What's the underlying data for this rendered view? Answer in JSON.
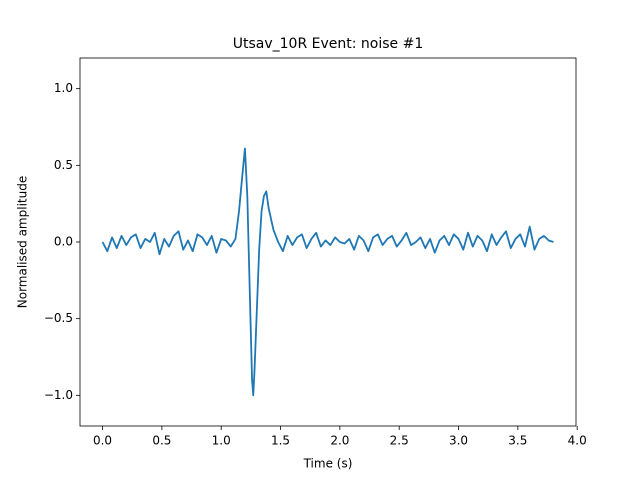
{
  "chart_data": {
    "type": "line",
    "title": "Utsav_10R Event: noise #1",
    "xlabel": "Time (s)",
    "ylabel": "Normalised amplitude",
    "color": "#1f77b4",
    "x": [
      0,
      0.04,
      0.08,
      0.12,
      0.16,
      0.2,
      0.24,
      0.28,
      0.32,
      0.36,
      0.4,
      0.44,
      0.48,
      0.52,
      0.56,
      0.6,
      0.64,
      0.68,
      0.72,
      0.76,
      0.8,
      0.84,
      0.88,
      0.92,
      0.96,
      1,
      1.04,
      1.08,
      1.12,
      1.15,
      1.18,
      1.2,
      1.22,
      1.24,
      1.26,
      1.27,
      1.28,
      1.3,
      1.32,
      1.34,
      1.36,
      1.38,
      1.4,
      1.44,
      1.48,
      1.52,
      1.56,
      1.6,
      1.64,
      1.68,
      1.72,
      1.76,
      1.8,
      1.84,
      1.88,
      1.92,
      1.96,
      2,
      2.04,
      2.08,
      2.12,
      2.16,
      2.2,
      2.24,
      2.28,
      2.32,
      2.36,
      2.4,
      2.44,
      2.48,
      2.52,
      2.56,
      2.6,
      2.64,
      2.68,
      2.72,
      2.76,
      2.8,
      2.84,
      2.88,
      2.92,
      2.96,
      3,
      3.04,
      3.08,
      3.12,
      3.16,
      3.2,
      3.24,
      3.28,
      3.32,
      3.36,
      3.4,
      3.44,
      3.48,
      3.52,
      3.56,
      3.6,
      3.64,
      3.68,
      3.72,
      3.76,
      3.8
    ],
    "values": [
      0,
      -0.06,
      0.03,
      -0.04,
      0.04,
      -0.02,
      0.03,
      0.05,
      -0.04,
      0.02,
      0,
      0.06,
      -0.08,
      0.02,
      -0.03,
      0.04,
      0.07,
      -0.05,
      0.01,
      -0.06,
      0.05,
      0.03,
      -0.02,
      0.04,
      -0.07,
      0.02,
      0.01,
      -0.03,
      0.02,
      0.2,
      0.45,
      0.61,
      0.3,
      -0.3,
      -0.9,
      -1.0,
      -0.85,
      -0.45,
      -0.05,
      0.2,
      0.3,
      0.33,
      0.22,
      0.08,
      0.0,
      -0.06,
      0.04,
      -0.02,
      0.03,
      0.05,
      -0.04,
      0.02,
      0.06,
      -0.03,
      0.01,
      -0.02,
      0.03,
      0,
      -0.01,
      0.02,
      -0.05,
      0.04,
      0.01,
      -0.06,
      0.03,
      0.05,
      -0.02,
      0.02,
      0.04,
      -0.03,
      0.01,
      0.06,
      -0.02,
      0,
      0.03,
      -0.04,
      0.02,
      -0.07,
      0.01,
      0.04,
      -0.02,
      0.05,
      0.02,
      -0.05,
      0.06,
      -0.03,
      0.04,
      0.01,
      -0.06,
      0.05,
      -0.02,
      0.03,
      0.07,
      -0.04,
      0.02,
      0.05,
      -0.03,
      0.1,
      -0.05,
      0.02,
      0.04,
      0.01,
      0.0
    ],
    "xlim": [
      -0.19,
      3.99
    ],
    "ylim": [
      -1.2,
      1.2
    ],
    "xticks": [
      {
        "value": 0,
        "label": "0.0"
      },
      {
        "value": 0.5,
        "label": "0.5"
      },
      {
        "value": 1,
        "label": "1.0"
      },
      {
        "value": 1.5,
        "label": "1.5"
      },
      {
        "value": 2,
        "label": "2.0"
      },
      {
        "value": 2.5,
        "label": "2.5"
      },
      {
        "value": 3,
        "label": "3.0"
      },
      {
        "value": 3.5,
        "label": "3.5"
      },
      {
        "value": 4,
        "label": "4.0"
      }
    ],
    "yticks": [
      {
        "value": -1,
        "label": "−1.0"
      },
      {
        "value": -0.5,
        "label": "−0.5"
      },
      {
        "value": 0,
        "label": "0.0"
      },
      {
        "value": 0.5,
        "label": "0.5"
      },
      {
        "value": 1,
        "label": "1.0"
      }
    ]
  }
}
